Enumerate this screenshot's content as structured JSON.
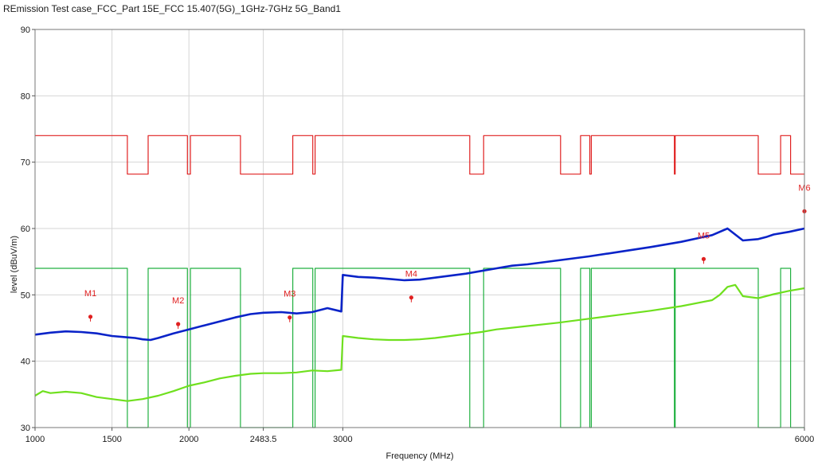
{
  "chart_data": {
    "type": "line",
    "title": "REmission Test case_FCC_Part 15E_FCC 15.407(5G)_1GHz-7GHz 5G_Band1",
    "xlabel": "Frequency (MHz)",
    "ylabel": "level (dBuV/m)",
    "xlim": [
      1000,
      6000
    ],
    "ylim": [
      30,
      90
    ],
    "x_tick_values": [
      1000,
      1500,
      2000,
      2483.5,
      3000,
      6000
    ],
    "x_tick_labels": [
      "1000",
      "1500",
      "2000",
      "2483.5",
      "3000",
      "6000"
    ],
    "y_ticks": [
      30,
      40,
      50,
      60,
      70,
      80,
      90
    ],
    "grid": true,
    "colors": {
      "peak": "#0a23c8",
      "average": "#6fe01e",
      "peak_limit": "#e02020",
      "average_limit": "#20b040",
      "marker": "#e02020"
    },
    "series": [
      {
        "role": "peak",
        "x": [
          1000,
          1100,
          1200,
          1300,
          1400,
          1500,
          1600,
          1650,
          1700,
          1750,
          1800,
          1900,
          2000,
          2100,
          2200,
          2300,
          2400,
          2483.5,
          2600,
          2700,
          2800,
          2900,
          2990,
          3000,
          3100,
          3200,
          3300,
          3400,
          3500,
          3600,
          3700,
          3800,
          3900,
          4000,
          4100,
          4200,
          4400,
          4600,
          4800,
          5000,
          5200,
          5400,
          5500,
          5600,
          5700,
          5750,
          5800,
          5900,
          6000
        ],
        "y": [
          44,
          44.3,
          44.5,
          44.4,
          44.2,
          43.8,
          43.6,
          43.5,
          43.3,
          43.2,
          43.5,
          44.2,
          44.8,
          45.4,
          46,
          46.6,
          47.1,
          47.3,
          47.4,
          47.2,
          47.4,
          48,
          47.5,
          53,
          52.7,
          52.6,
          52.4,
          52.2,
          52.3,
          52.6,
          52.9,
          53.2,
          53.6,
          54,
          54.4,
          54.6,
          55.2,
          55.8,
          56.5,
          57.2,
          58,
          59,
          60,
          58.2,
          58.4,
          58.7,
          59.1,
          59.5,
          60
        ]
      },
      {
        "role": "average",
        "x": [
          1000,
          1050,
          1100,
          1200,
          1300,
          1400,
          1500,
          1600,
          1700,
          1800,
          1900,
          2000,
          2100,
          2200,
          2300,
          2400,
          2483.5,
          2600,
          2700,
          2800,
          2900,
          2990,
          3000,
          3100,
          3200,
          3300,
          3400,
          3500,
          3600,
          3700,
          3800,
          3900,
          4000,
          4200,
          4400,
          4600,
          4800,
          5000,
          5200,
          5400,
          5450,
          5500,
          5550,
          5600,
          5700,
          5800,
          5900,
          6000
        ],
        "y": [
          34.8,
          35.5,
          35.2,
          35.4,
          35.2,
          34.6,
          34.3,
          34,
          34.3,
          34.8,
          35.5,
          36.3,
          36.8,
          37.4,
          37.8,
          38.1,
          38.2,
          38.2,
          38.3,
          38.6,
          38.5,
          38.7,
          43.8,
          43.5,
          43.3,
          43.2,
          43.2,
          43.3,
          43.5,
          43.8,
          44.1,
          44.4,
          44.8,
          45.3,
          45.8,
          46.4,
          47,
          47.6,
          48.3,
          49.2,
          50,
          51.2,
          51.5,
          49.8,
          49.5,
          50.1,
          50.6,
          51
        ]
      },
      {
        "role": "peak_limit",
        "step": true,
        "x": [
          1000,
          1600,
          1600,
          1735,
          1735,
          1990,
          1990,
          2010,
          2010,
          2335,
          2335,
          2675,
          2675,
          2805,
          2805,
          2820,
          2820,
          3825,
          3825,
          3915,
          3915,
          4415,
          4415,
          4545,
          4545,
          4605,
          4605,
          4615,
          4615,
          5155,
          5155,
          5160,
          5160,
          5700,
          5700,
          5845,
          5845,
          5910,
          5910,
          6000
        ],
        "y": [
          74,
          74,
          68.2,
          68.2,
          74,
          74,
          68.2,
          68.2,
          74,
          74,
          68.2,
          68.2,
          74,
          74,
          68.2,
          68.2,
          74,
          74,
          68.2,
          68.2,
          74,
          74,
          68.2,
          68.2,
          74,
          74,
          68.2,
          68.2,
          74,
          74,
          68.2,
          68.2,
          74,
          74,
          68.2,
          68.2,
          74,
          74,
          68.2,
          68.2
        ]
      },
      {
        "role": "average_limit",
        "step": true,
        "x": [
          1000,
          1600,
          1600,
          1735,
          1735,
          1990,
          1990,
          2010,
          2010,
          2335,
          2335,
          2675,
          2675,
          2805,
          2805,
          2820,
          2820,
          3825,
          3825,
          3915,
          3915,
          4415,
          4415,
          4545,
          4545,
          4605,
          4605,
          4615,
          4615,
          5155,
          5155,
          5160,
          5160,
          5700,
          5700,
          5845,
          5845,
          5910,
          5910,
          6000
        ],
        "y": [
          54,
          54,
          30,
          30,
          54,
          54,
          30,
          30,
          54,
          54,
          30,
          30,
          54,
          54,
          30,
          30,
          54,
          54,
          30,
          30,
          54,
          54,
          30,
          30,
          54,
          54,
          30,
          30,
          54,
          54,
          30,
          30,
          54,
          54,
          30,
          30,
          54,
          54,
          30,
          30
        ]
      }
    ],
    "markers": [
      {
        "label": "M1",
        "x": 1360,
        "y": 46.7
      },
      {
        "label": "M2",
        "x": 1930,
        "y": 45.6
      },
      {
        "label": "M3",
        "x": 2655,
        "y": 46.6
      },
      {
        "label": "M4",
        "x": 3445,
        "y": 49.6
      },
      {
        "label": "M5",
        "x": 5345,
        "y": 55.4
      },
      {
        "label": "M6",
        "x": 6000,
        "y": 62.6
      }
    ]
  }
}
